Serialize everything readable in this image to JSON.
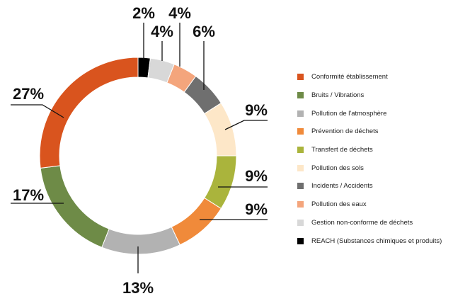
{
  "chart_data": {
    "type": "pie",
    "donut": true,
    "legend_position": "right",
    "labels": [
      "Conformité établissement",
      "Bruits / Vibrations",
      "Pollution de l'atmosphère",
      "Prévention de déchets",
      "Transfert de déchets",
      "Pollution des sols",
      "Incidents / Accidents",
      "Pollution des eaux",
      "Gestion non-conforme de déchets",
      "REACH (Substances chimiques et produits)"
    ],
    "values": [
      27,
      17,
      13,
      9,
      9,
      9,
      6,
      4,
      4,
      2
    ],
    "value_labels": [
      "27%",
      "17%",
      "13%",
      "9%",
      "9%",
      "9%",
      "6%",
      "4%",
      "4%",
      "2%"
    ],
    "colors": [
      "#d9541e",
      "#6e8b47",
      "#b2b2b2",
      "#f08a3a",
      "#aab43c",
      "#fde7c8",
      "#6f6f6f",
      "#f4a57c",
      "#d8d8d8",
      "#000000"
    ]
  }
}
